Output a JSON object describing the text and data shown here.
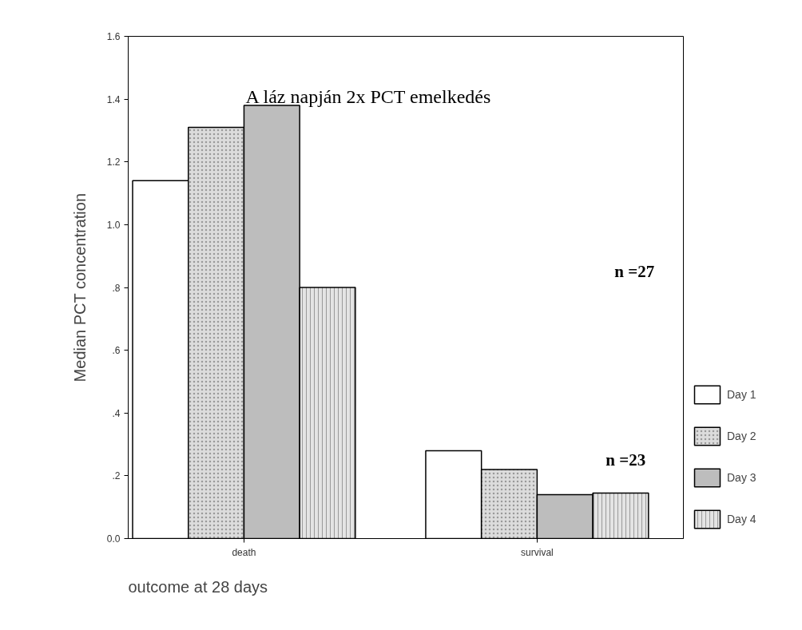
{
  "chart_data": {
    "type": "bar",
    "title": "A láz napján 2x PCT emelkedés",
    "xlabel": "outcome at 28 days",
    "ylabel": "Median PCT concentration",
    "categories": [
      "death",
      "survival"
    ],
    "series": [
      {
        "name": "Day 1",
        "color": "#ffffff",
        "values": [
          1.14,
          0.28
        ]
      },
      {
        "name": "Day 2",
        "color": "#dcdcdc",
        "values": [
          1.31,
          0.22
        ]
      },
      {
        "name": "Day 3",
        "color": "#bdbdbd",
        "values": [
          1.38,
          0.14
        ]
      },
      {
        "name": "Day 4",
        "color": "#e4e4e4",
        "values": [
          0.8,
          0.145
        ]
      }
    ],
    "ylim": [
      0,
      1.6
    ],
    "yticks": [
      {
        "value": 0,
        "label": "0.0"
      },
      {
        "value": 0.2,
        "label": ".2"
      },
      {
        "value": 0.4,
        "label": ".4"
      },
      {
        "value": 0.6,
        "label": ".6"
      },
      {
        "value": 0.8,
        "label": ".8"
      },
      {
        "value": 1.0,
        "label": "1.0"
      },
      {
        "value": 1.2,
        "label": "1.2"
      },
      {
        "value": 1.4,
        "label": "1.4"
      },
      {
        "value": 1.6,
        "label": "1.6"
      }
    ],
    "annotations": [
      "n =27",
      "n =23"
    ],
    "grid": false,
    "legend": "bottom right"
  }
}
